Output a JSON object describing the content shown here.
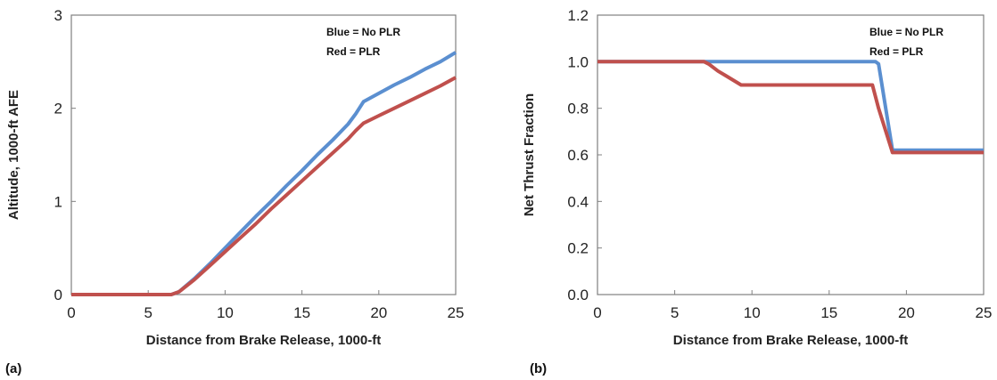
{
  "colors": {
    "no_plr": "#5b8fd0",
    "plr": "#c0504d"
  },
  "chart_data": [
    {
      "type": "line",
      "panel_label": "(a)",
      "xlabel": "Distance from Brake Release, 1000-ft",
      "ylabel": "Altitude, 1000-ft AFE",
      "xlim": [
        0,
        25
      ],
      "ylim": [
        0,
        3
      ],
      "xticks": [
        "0",
        "5",
        "10",
        "15",
        "20",
        "25"
      ],
      "yticks": [
        "0",
        "1",
        "2",
        "3"
      ],
      "annotations": [
        "Blue = No PLR",
        "Red = PLR"
      ],
      "grid": false,
      "series": [
        {
          "name": "No PLR",
          "color": "no_plr",
          "x": [
            0,
            6.5,
            7,
            8,
            9,
            10,
            11,
            12,
            13,
            14,
            15,
            16,
            17,
            18,
            18.5,
            19,
            20,
            21,
            22,
            23,
            24,
            25
          ],
          "y": [
            0,
            0,
            0.03,
            0.17,
            0.33,
            0.5,
            0.67,
            0.84,
            1.0,
            1.17,
            1.33,
            1.5,
            1.66,
            1.83,
            1.94,
            2.07,
            2.16,
            2.25,
            2.33,
            2.42,
            2.5,
            2.6
          ]
        },
        {
          "name": "PLR",
          "color": "plr",
          "x": [
            0,
            6.5,
            7,
            8,
            9,
            10,
            11,
            12,
            13,
            14,
            15,
            16,
            17,
            18,
            18.5,
            19,
            20,
            21,
            22,
            23,
            24,
            25
          ],
          "y": [
            0,
            0,
            0.03,
            0.16,
            0.31,
            0.46,
            0.61,
            0.76,
            0.92,
            1.07,
            1.22,
            1.37,
            1.52,
            1.67,
            1.76,
            1.84,
            1.92,
            2.0,
            2.08,
            2.16,
            2.24,
            2.33
          ]
        }
      ]
    },
    {
      "type": "line",
      "panel_label": "(b)",
      "xlabel": "Distance from Brake Release, 1000-ft",
      "ylabel": "Net Thrust Fraction",
      "xlim": [
        0,
        25
      ],
      "ylim": [
        0,
        1.2
      ],
      "xticks": [
        "0",
        "5",
        "10",
        "15",
        "20",
        "25"
      ],
      "yticks": [
        "0.0",
        "0.2",
        "0.4",
        "0.6",
        "0.8",
        "1.0",
        "1.2"
      ],
      "annotations": [
        "Blue = No PLR",
        "Red = PLR"
      ],
      "grid": false,
      "series": [
        {
          "name": "No PLR",
          "color": "no_plr",
          "x": [
            0,
            18,
            18.2,
            19.1,
            25
          ],
          "y": [
            1.0,
            1.0,
            0.99,
            0.62,
            0.62
          ]
        },
        {
          "name": "PLR",
          "color": "plr",
          "x": [
            0,
            6.9,
            7.2,
            7.8,
            8.3,
            9.3,
            17.8,
            18.2,
            19.1,
            25
          ],
          "y": [
            1.0,
            1.0,
            0.99,
            0.96,
            0.94,
            0.9,
            0.9,
            0.8,
            0.61,
            0.61
          ]
        }
      ]
    }
  ]
}
